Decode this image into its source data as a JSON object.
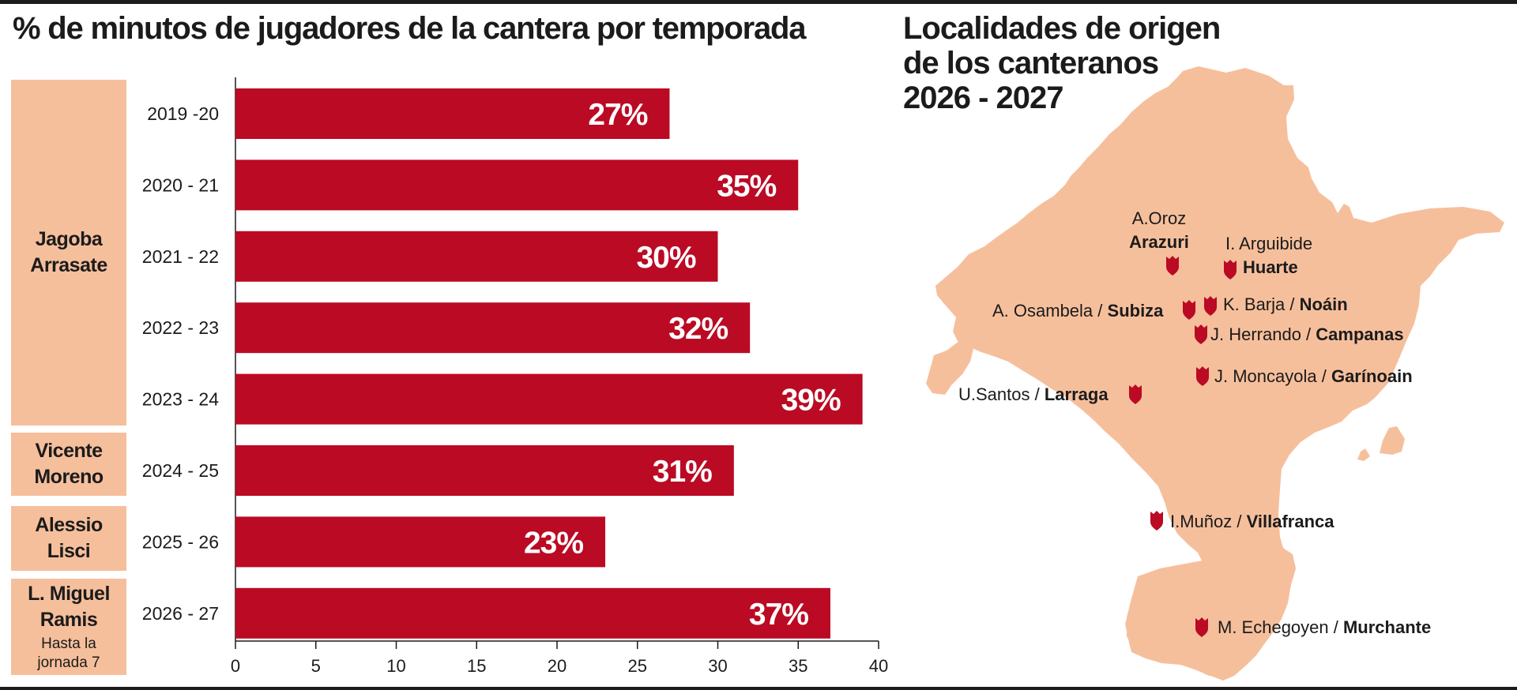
{
  "chart_title": "% de minutos de jugadores de la cantera por temporada",
  "map_title": [
    "Localidades de origen",
    "de los canteranos",
    "2026 - 2027"
  ],
  "coaches": [
    {
      "name": [
        "Jagoba",
        "Arrasate"
      ],
      "note": []
    },
    {
      "name": [
        "Vicente",
        "Moreno"
      ],
      "note": []
    },
    {
      "name": [
        "Alessio",
        "Lisci"
      ],
      "note": []
    },
    {
      "name": [
        "L. Miguel",
        "Ramis"
      ],
      "note": [
        "Hasta la",
        "jornada 7"
      ]
    }
  ],
  "chart_data": {
    "type": "bar",
    "orientation": "horizontal",
    "title": "% de minutos de jugadores de la cantera por temporada",
    "categories": [
      "2019 -20",
      "2020 - 21",
      "2021 - 22",
      "2022 - 23",
      "2023 - 24",
      "2024 - 25",
      "2025 - 26",
      "2026 - 27"
    ],
    "values": [
      27,
      35,
      30,
      32,
      39,
      31,
      23,
      37
    ],
    "value_labels": [
      "27%",
      "35%",
      "30%",
      "32%",
      "39%",
      "31%",
      "23%",
      "37%"
    ],
    "xlim": [
      0,
      40
    ],
    "xticks": [
      "0",
      "5",
      "10",
      "15",
      "20",
      "25",
      "30",
      "35",
      "40"
    ],
    "grid": false,
    "bar_color": "#bb0a24"
  },
  "map": {
    "fill_color": "#f6bf9c",
    "marker_color": "#bb0a24",
    "marker_icon": "shield-icon",
    "labels": [
      {
        "player": "A.Oroz",
        "town": "Arazuri"
      },
      {
        "player": "I. Arguibide",
        "town": "Huarte"
      },
      {
        "player": "A. Osambela / ",
        "town": "Subiza"
      },
      {
        "player": "K. Barja / ",
        "town": "Noáin"
      },
      {
        "player": "J. Herrando / ",
        "town": "Campanas"
      },
      {
        "player": "J. Moncayola / ",
        "town": "Garínoain"
      },
      {
        "player": "U.Santos / ",
        "town": "Larraga"
      },
      {
        "player": "I.Muñoz / ",
        "town": "Villafranca"
      },
      {
        "player": "M. Echegoyen / ",
        "town": "Murchante"
      }
    ]
  }
}
